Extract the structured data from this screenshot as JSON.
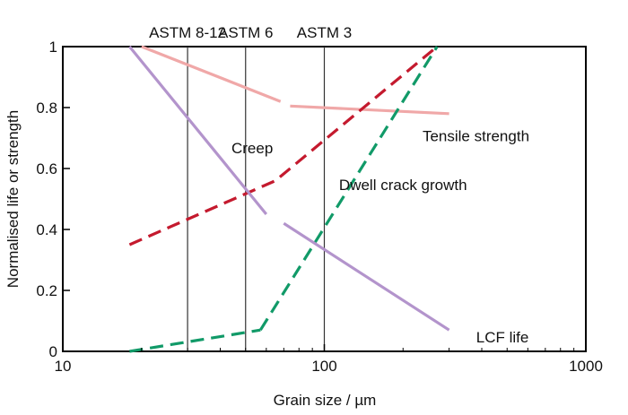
{
  "chart_data": {
    "type": "line",
    "title": "",
    "xlabel": "Grain size / µm",
    "ylabel": "Normalised life or strength",
    "x_scale": "log",
    "xlim": [
      10,
      1000
    ],
    "ylim": [
      0,
      1
    ],
    "x_ticks": [
      {
        "value": 10,
        "label": "10"
      },
      {
        "value": 100,
        "label": "100"
      },
      {
        "value": 1000,
        "label": "1000"
      }
    ],
    "y_ticks": [
      {
        "value": 0,
        "label": "0"
      },
      {
        "value": 0.2,
        "label": "0.2"
      },
      {
        "value": 0.4,
        "label": "0.4"
      },
      {
        "value": 0.6,
        "label": "0.6"
      },
      {
        "value": 0.8,
        "label": "0.8"
      },
      {
        "value": 1,
        "label": "1"
      }
    ],
    "grid": false,
    "reference_lines": [
      {
        "x": 30,
        "label": "ASTM 8-12"
      },
      {
        "x": 50,
        "label": "ASTM 6"
      },
      {
        "x": 100,
        "label": "ASTM 3"
      }
    ],
    "series": [
      {
        "name": "Tensile strength",
        "color": "#f0a8a8",
        "dash": "solid",
        "segments": [
          {
            "x": [
              20,
              68
            ],
            "y": [
              1.0,
              0.82
            ]
          },
          {
            "x": [
              74,
              300
            ],
            "y": [
              0.805,
              0.78
            ]
          }
        ]
      },
      {
        "name": "Creep",
        "color": "#c41a2e",
        "dash": "dashed",
        "segments": [
          {
            "x": [
              18,
              65,
              270
            ],
            "y": [
              0.35,
              0.56,
              1.0
            ]
          }
        ]
      },
      {
        "name": "Dwell crack growth",
        "color": "#119a68",
        "dash": "dashed",
        "segments": [
          {
            "x": [
              18,
              57
            ],
            "y": [
              0.0,
              0.07
            ]
          },
          {
            "x": [
              57,
              270
            ],
            "y": [
              0.07,
              1.0
            ]
          }
        ]
      },
      {
        "name": "LCF life",
        "color": "#b394cc",
        "dash": "solid",
        "segments": [
          {
            "x": [
              18,
              60
            ],
            "y": [
              1.0,
              0.45
            ]
          },
          {
            "x": [
              70,
              300
            ],
            "y": [
              0.42,
              0.07
            ]
          }
        ]
      }
    ],
    "annotations": [
      {
        "text": "Creep",
        "x": 53,
        "y": 0.65
      },
      {
        "text": "Tensile strength",
        "x": 380,
        "y": 0.69
      },
      {
        "text": "Dwell crack growth",
        "x": 200,
        "y": 0.53
      },
      {
        "text": "LCF life",
        "x": 480,
        "y": 0.03
      }
    ]
  }
}
